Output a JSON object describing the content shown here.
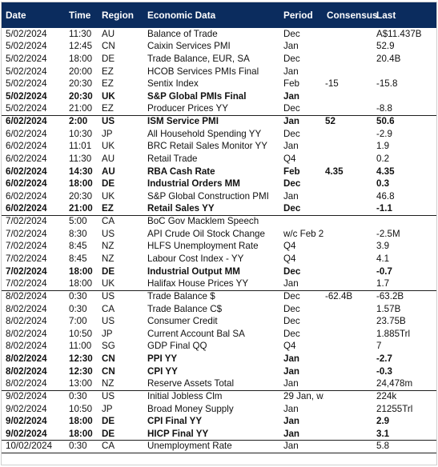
{
  "headers": {
    "date": "Date",
    "time": "Time",
    "region": "Region",
    "event": "Economic Data",
    "period": "Period",
    "consensus": "Consensus",
    "last": "Last"
  },
  "colors": {
    "header_bg": "#0b2c5e",
    "header_text": "#ffffff",
    "separator": "#1e1e1e"
  },
  "rows": [
    {
      "date": "5/02/2024",
      "time": "11:30",
      "region": "AU",
      "event": "Balance of Trade",
      "period": "Dec",
      "consensus": "",
      "last": "A$11.437B",
      "bold": false,
      "sep": false
    },
    {
      "date": "5/02/2024",
      "time": "12:45",
      "region": "CN",
      "event": "Caixin Services PMI",
      "period": "Jan",
      "consensus": "",
      "last": "52.9",
      "bold": false,
      "sep": false
    },
    {
      "date": "5/02/2024",
      "time": "18:00",
      "region": "DE",
      "event": "Trade Balance, EUR, SA",
      "period": "Dec",
      "consensus": "",
      "last": "20.4B",
      "bold": false,
      "sep": false
    },
    {
      "date": "5/02/2024",
      "time": "20:00",
      "region": "EZ",
      "event": "HCOB Services PMIs Final",
      "period": "Jan",
      "consensus": "",
      "last": "",
      "bold": false,
      "sep": false
    },
    {
      "date": "5/02/2024",
      "time": "20:30",
      "region": "EZ",
      "event": "Sentix Index",
      "period": "Feb",
      "consensus": "-15",
      "last": "-15.8",
      "bold": false,
      "sep": false
    },
    {
      "date": "5/02/2024",
      "time": "20:30",
      "region": "UK",
      "event": "S&P Global PMIs Final",
      "period": "Jan",
      "consensus": "",
      "last": "",
      "bold": true,
      "sep": false
    },
    {
      "date": "5/02/2024",
      "time": "21:00",
      "region": "EZ",
      "event": "Producer Prices YY",
      "period": "Dec",
      "consensus": "",
      "last": "-8.8",
      "bold": false,
      "sep": false
    },
    {
      "date": "6/02/2024",
      "time": "2:00",
      "region": "US",
      "event": "ISM Service PMI",
      "period": "Jan",
      "consensus": "52",
      "last": "50.6",
      "bold": true,
      "sep": true
    },
    {
      "date": "6/02/2024",
      "time": "10:30",
      "region": "JP",
      "event": "All Household Spending YY",
      "period": "Dec",
      "consensus": "",
      "last": "-2.9",
      "bold": false,
      "sep": false
    },
    {
      "date": "6/02/2024",
      "time": "11:01",
      "region": "UK",
      "event": "BRC Retail Sales Monitor YY",
      "period": "Jan",
      "consensus": "",
      "last": "1.9",
      "bold": false,
      "sep": false
    },
    {
      "date": "6/02/2024",
      "time": "11:30",
      "region": "AU",
      "event": "Retail Trade",
      "period": "Q4",
      "consensus": "",
      "last": "0.2",
      "bold": false,
      "sep": false
    },
    {
      "date": "6/02/2024",
      "time": "14:30",
      "region": "AU",
      "event": "RBA Cash Rate",
      "period": "Feb",
      "consensus": "4.35",
      "last": "4.35",
      "bold": true,
      "sep": false
    },
    {
      "date": "6/02/2024",
      "time": "18:00",
      "region": "DE",
      "event": "Industrial Orders MM",
      "period": "Dec",
      "consensus": "",
      "last": "0.3",
      "bold": true,
      "sep": false
    },
    {
      "date": "6/02/2024",
      "time": "20:30",
      "region": "UK",
      "event": "S&P Global Construction PMI",
      "period": "Jan",
      "consensus": "",
      "last": "46.8",
      "bold": false,
      "sep": false
    },
    {
      "date": "6/02/2024",
      "time": "21:00",
      "region": "EZ",
      "event": "Retail Sales YY",
      "period": "Dec",
      "consensus": "",
      "last": "-1.1",
      "bold": true,
      "sep": false
    },
    {
      "date": "7/02/2024",
      "time": "5:00",
      "region": "CA",
      "event": "BoC Gov Macklem Speech",
      "period": "",
      "consensus": "",
      "last": "",
      "bold": false,
      "sep": true
    },
    {
      "date": "7/02/2024",
      "time": "8:30",
      "region": "US",
      "event": "API Crude Oil Stock Change",
      "period": "w/c Feb 2",
      "consensus": "",
      "last": "-2.5M",
      "bold": false,
      "sep": false
    },
    {
      "date": "7/02/2024",
      "time": "8:45",
      "region": "NZ",
      "event": "HLFS Unemployment Rate",
      "period": "Q4",
      "consensus": "",
      "last": "3.9",
      "bold": false,
      "sep": false
    },
    {
      "date": "7/02/2024",
      "time": "8:45",
      "region": "NZ",
      "event": "Labour Cost Index - YY",
      "period": "Q4",
      "consensus": "",
      "last": "4.1",
      "bold": false,
      "sep": false
    },
    {
      "date": "7/02/2024",
      "time": "18:00",
      "region": "DE",
      "event": "Industrial Output MM",
      "period": "Dec",
      "consensus": "",
      "last": "-0.7",
      "bold": true,
      "sep": false
    },
    {
      "date": "7/02/2024",
      "time": "18:00",
      "region": "UK",
      "event": "Halifax House Prices YY",
      "period": "Jan",
      "consensus": "",
      "last": "1.7",
      "bold": false,
      "sep": false
    },
    {
      "date": "8/02/2024",
      "time": "0:30",
      "region": "US",
      "event": "Trade Balance $",
      "period": "Dec",
      "consensus": "-62.4B",
      "last": "-63.2B",
      "bold": false,
      "sep": true
    },
    {
      "date": "8/02/2024",
      "time": "0:30",
      "region": "CA",
      "event": "Trade Balance C$",
      "period": "Dec",
      "consensus": "",
      "last": "1.57B",
      "bold": false,
      "sep": false
    },
    {
      "date": "8/02/2024",
      "time": "7:00",
      "region": "US",
      "event": "Consumer Credit",
      "period": "Dec",
      "consensus": "",
      "last": "23.75B",
      "bold": false,
      "sep": false
    },
    {
      "date": "8/02/2024",
      "time": "10:50",
      "region": "JP",
      "event": "Current Account Bal SA",
      "period": "Dec",
      "consensus": "",
      "last": "1.885Trl",
      "bold": false,
      "sep": false
    },
    {
      "date": "8/02/2024",
      "time": "11:00",
      "region": "SG",
      "event": "GDP Final QQ",
      "period": "Q4",
      "consensus": "",
      "last": "7",
      "bold": false,
      "sep": false
    },
    {
      "date": "8/02/2024",
      "time": "12:30",
      "region": "CN",
      "event": "PPI YY",
      "period": "Jan",
      "consensus": "",
      "last": "-2.7",
      "bold": true,
      "sep": false
    },
    {
      "date": "8/02/2024",
      "time": "12:30",
      "region": "CN",
      "event": "CPI YY",
      "period": "Jan",
      "consensus": "",
      "last": "-0.3",
      "bold": true,
      "sep": false
    },
    {
      "date": "8/02/2024",
      "time": "13:00",
      "region": "NZ",
      "event": "Reserve Assets Total",
      "period": "Jan",
      "consensus": "",
      "last": "24,478m",
      "bold": false,
      "sep": false
    },
    {
      "date": "9/02/2024",
      "time": "0:30",
      "region": "US",
      "event": "Initial Jobless Clm",
      "period": "29 Jan, w/e",
      "consensus": "",
      "last": "224k",
      "bold": false,
      "sep": true
    },
    {
      "date": "9/02/2024",
      "time": "10:50",
      "region": "JP",
      "event": "Broad Money Supply",
      "period": "Jan",
      "consensus": "",
      "last": "21255Trl",
      "bold": false,
      "sep": false
    },
    {
      "date": "9/02/2024",
      "time": "18:00",
      "region": "DE",
      "event": "CPI Final YY",
      "period": "Jan",
      "consensus": "",
      "last": "2.9",
      "bold": true,
      "sep": false
    },
    {
      "date": "9/02/2024",
      "time": "18:00",
      "region": "DE",
      "event": "HICP Final YY",
      "period": "Jan",
      "consensus": "",
      "last": "3.1",
      "bold": true,
      "sep": false
    },
    {
      "date": "10/02/2024",
      "time": "0:30",
      "region": "CA",
      "event": "Unemployment Rate",
      "period": "Jan",
      "consensus": "",
      "last": "5.8",
      "bold": false,
      "sep": true
    }
  ]
}
